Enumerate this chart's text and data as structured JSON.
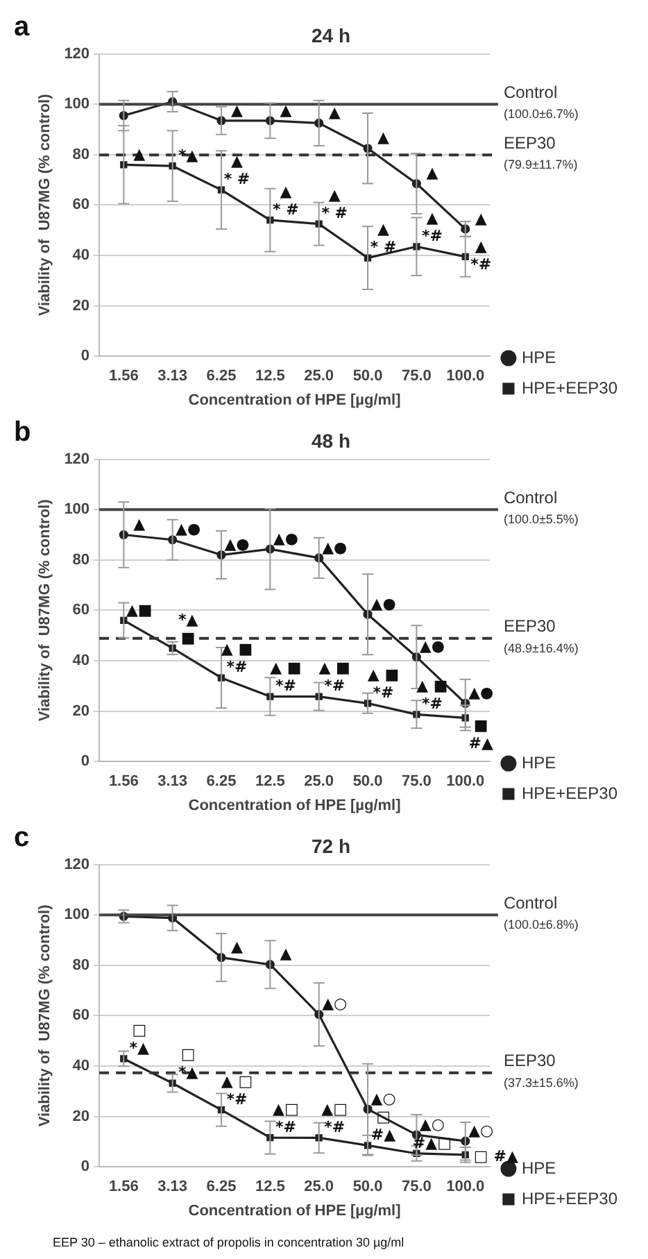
{
  "chart_data": [
    {
      "type": "line",
      "title": "24 h",
      "xlabel": "Concentration of HPE [µg/ml]",
      "ylabel": "Viability of  U87MG (% control)",
      "categories": [
        "1.56",
        "3.13",
        "6.25",
        "12.5",
        "25.0",
        "50.0",
        "75.0",
        "100.0"
      ],
      "ylim": [
        0,
        120
      ],
      "yticks": [
        0,
        20,
        40,
        60,
        80,
        100,
        120
      ],
      "grid": "y",
      "legend": "right",
      "series": [
        {
          "name": "HPE",
          "color": "#222222",
          "marker": "circle",
          "values": [
            95.5,
            101,
            93.5,
            93.5,
            92.5,
            82.5,
            68.5,
            50.5
          ],
          "errors": [
            6,
            4,
            5.5,
            7,
            9,
            14,
            12,
            3
          ]
        },
        {
          "name": "HPE+EEP30",
          "color": "#222222",
          "marker": "square",
          "values": [
            76,
            75.5,
            66,
            54,
            52.5,
            39,
            43.5,
            39.5
          ],
          "errors": [
            15.5,
            14,
            15.5,
            12.5,
            8.5,
            12.5,
            11.5,
            8
          ]
        }
      ],
      "ref_lines": [
        {
          "axis": "y",
          "value": 100,
          "label": "Control (100.0±6.7%)",
          "line_style": "solid",
          "color": "#444444"
        },
        {
          "axis": "y",
          "value": 79.9,
          "label": "EEP30 (79.9±11.7%)",
          "line_style": "dashed",
          "color": "#333333"
        }
      ],
      "annotations": [
        "a",
        {
          "text": "▲",
          "x": "1.56",
          "y": 76
        },
        {
          "text": "*▲",
          "x": "3.13",
          "y": 75.5
        },
        {
          "text": "▲",
          "x": "6.25",
          "y": 93.5
        },
        {
          "text": "* #",
          "x": "6.25",
          "y": 66
        },
        {
          "text": "▲",
          "x": "6.25",
          "y": 66
        },
        {
          "text": "▲",
          "x": "12.5",
          "y": 93.5
        },
        {
          "text": "* #",
          "x": "12.5",
          "y": 54
        },
        {
          "text": "▲",
          "x": "12.5",
          "y": 54
        },
        {
          "text": "▲",
          "x": "25.0",
          "y": 92.5
        },
        {
          "text": "* #",
          "x": "25.0",
          "y": 52.5
        },
        {
          "text": "▲",
          "x": "25.0",
          "y": 52.5
        },
        {
          "text": "▲",
          "x": "50.0",
          "y": 82.5
        },
        {
          "text": "* #",
          "x": "50.0",
          "y": 39
        },
        {
          "text": "▲",
          "x": "50.0",
          "y": 39
        },
        {
          "text": "▲",
          "x": "75.0",
          "y": 68.5
        },
        {
          "text": "*#",
          "x": "75.0",
          "y": 43.5
        },
        {
          "text": "▲",
          "x": "75.0",
          "y": 43.5
        },
        {
          "text": "▲",
          "x": "100.0",
          "y": 50.5
        },
        {
          "text": "▲",
          "x": "100.0",
          "y": 39.5
        },
        {
          "text": "*#",
          "x": "100.0",
          "y": 39.5
        }
      ]
    },
    {
      "type": "line",
      "title": "48 h",
      "xlabel": "Concentration of HPE [µg/ml]",
      "ylabel": "Viability of  U87MG (% control)",
      "categories": [
        "1.56",
        "3.13",
        "6.25",
        "12.5",
        "25.0",
        "50.0",
        "75.0",
        "100.0"
      ],
      "ylim": [
        0,
        120
      ],
      "yticks": [
        0,
        20,
        40,
        60,
        80,
        100,
        120
      ],
      "grid": "y",
      "legend": "right",
      "series": [
        {
          "name": "HPE",
          "color": "#222222",
          "marker": "circle",
          "values": [
            90,
            88,
            82,
            84.3,
            80.8,
            58.4,
            41.5,
            23.1
          ],
          "errors": [
            13,
            8,
            9.5,
            16,
            8,
            16,
            12.5,
            9.5
          ]
        },
        {
          "name": "HPE+EEP30",
          "color": "#222222",
          "marker": "square",
          "values": [
            56,
            45,
            33.2,
            25.8,
            25.8,
            23.1,
            18.7,
            17.3
          ],
          "errors": [
            7,
            2.5,
            12,
            7.5,
            5.5,
            4,
            5.5,
            5
          ]
        }
      ],
      "ref_lines": [
        {
          "axis": "y",
          "value": 100,
          "label": "Control (100.0±5.5%)",
          "line_style": "solid",
          "color": "#444444"
        },
        {
          "axis": "y",
          "value": 48.9,
          "label": "EEP30 (48.9±16.4%)",
          "line_style": "dashed",
          "color": "#333333"
        }
      ],
      "annotations": [
        "b",
        {
          "text": "▲",
          "x": "1.56",
          "y": 90
        },
        {
          "text": "▲■",
          "x": "1.56",
          "y": 56
        },
        {
          "text": "▲●",
          "x": "3.13",
          "y": 88
        },
        {
          "text": "■",
          "x": "3.13",
          "y": 45
        },
        {
          "text": "*▲",
          "x": "3.13",
          "y": 45
        },
        {
          "text": "▲●",
          "x": "6.25",
          "y": 82
        },
        {
          "text": "*#",
          "x": "6.25",
          "y": 33.2
        },
        {
          "text": "▲ ■",
          "x": "6.25",
          "y": 33.2
        },
        {
          "text": "▲●",
          "x": "12.5",
          "y": 84.3
        },
        {
          "text": "*#",
          "x": "12.5",
          "y": 25.8
        },
        {
          "text": "▲ ■",
          "x": "12.5",
          "y": 25.8
        },
        {
          "text": "▲●",
          "x": "25.0",
          "y": 80.8
        },
        {
          "text": "*#",
          "x": "25.0",
          "y": 25.8
        },
        {
          "text": "▲ ■",
          "x": "25.0",
          "y": 25.8
        },
        {
          "text": "▲●",
          "x": "50.0",
          "y": 58.4
        },
        {
          "text": "*#",
          "x": "50.0",
          "y": 23.1
        },
        {
          "text": "▲ ■",
          "x": "50.0",
          "y": 23.1
        },
        {
          "text": "▲●",
          "x": "75.0",
          "y": 41.5
        },
        {
          "text": "*#",
          "x": "75.0",
          "y": 18.7
        },
        {
          "text": "▲ ■",
          "x": "75.0",
          "y": 18.7
        },
        {
          "text": "▲●",
          "x": "100.0",
          "y": 23.1
        },
        {
          "text": "■",
          "x": "100.0",
          "y": 17.3
        },
        {
          "text": "#▲",
          "x": "100.0",
          "y": 17.3
        }
      ]
    },
    {
      "type": "line",
      "title": "72 h",
      "xlabel": "Concentration of HPE [µg/ml]",
      "ylabel": "Viability of  U87MG (% control)",
      "categories": [
        "1.56",
        "3.13",
        "6.25",
        "12.5",
        "25.0",
        "50.0",
        "75.0",
        "100.0"
      ],
      "ylim": [
        0,
        120
      ],
      "yticks": [
        0,
        20,
        40,
        60,
        80,
        100,
        120
      ],
      "grid": "y",
      "legend": "right",
      "series": [
        {
          "name": "HPE",
          "color": "#222222",
          "marker": "circle",
          "values": [
            99.4,
            98.8,
            83.1,
            80.3,
            60.5,
            22.9,
            12.7,
            10.2
          ],
          "errors": [
            2.5,
            5,
            9.5,
            9.5,
            12.5,
            18,
            8,
            7.5
          ]
        },
        {
          "name": "HPE+EEP30",
          "color": "#222222",
          "marker": "square",
          "values": [
            42.9,
            33.2,
            22.6,
            11.6,
            11.5,
            8.5,
            5.3,
            4.8
          ],
          "errors": [
            3,
            3.5,
            6.5,
            6.5,
            6,
            4,
            3,
            3
          ]
        }
      ],
      "ref_lines": [
        {
          "axis": "y",
          "value": 100,
          "label": "Control (100.0±6.8%)",
          "line_style": "solid",
          "color": "#444444"
        },
        {
          "axis": "y",
          "value": 37.3,
          "label": "EEP30 (37.3±15.6%)",
          "line_style": "dashed",
          "color": "#333333"
        }
      ],
      "annotations": [
        "c",
        {
          "text": "*▲",
          "x": "1.56",
          "y": 42.9
        },
        {
          "text": "□",
          "x": "1.56",
          "y": 42.9
        },
        {
          "text": "*▲",
          "x": "3.13",
          "y": 33.2
        },
        {
          "text": "□",
          "x": "3.13",
          "y": 33.2
        },
        {
          "text": "▲",
          "x": "6.25",
          "y": 83.1
        },
        {
          "text": "*#",
          "x": "6.25",
          "y": 22.6
        },
        {
          "text": "▲ □",
          "x": "6.25",
          "y": 22.6
        },
        {
          "text": "▲",
          "x": "12.5",
          "y": 80.3
        },
        {
          "text": "*#",
          "x": "12.5",
          "y": 11.6
        },
        {
          "text": "▲□",
          "x": "12.5",
          "y": 11.6
        },
        {
          "text": "▲○",
          "x": "25.0",
          "y": 60.5
        },
        {
          "text": "*#",
          "x": "25.0",
          "y": 11.5
        },
        {
          "text": "▲□",
          "x": "25.0",
          "y": 11.5
        },
        {
          "text": "▲○",
          "x": "50.0",
          "y": 22.9
        },
        {
          "text": "#▲",
          "x": "50.0",
          "y": 8.5
        },
        {
          "text": "□",
          "x": "50.0",
          "y": 8.5
        },
        {
          "text": "▲○",
          "x": "75.0",
          "y": 12.7
        },
        {
          "text": "#▲□",
          "x": "75.0",
          "y": 5.3
        },
        {
          "text": "▲○",
          "x": "100.0",
          "y": 10.2
        },
        {
          "text": "□",
          "x": "100.0",
          "y": 4.8
        },
        {
          "text": "#▲",
          "x": "100.0",
          "y": 4.8
        },
        "EEP 30 – ethanolic extract of propolis in concentration 30 µg/ml"
      ]
    }
  ]
}
